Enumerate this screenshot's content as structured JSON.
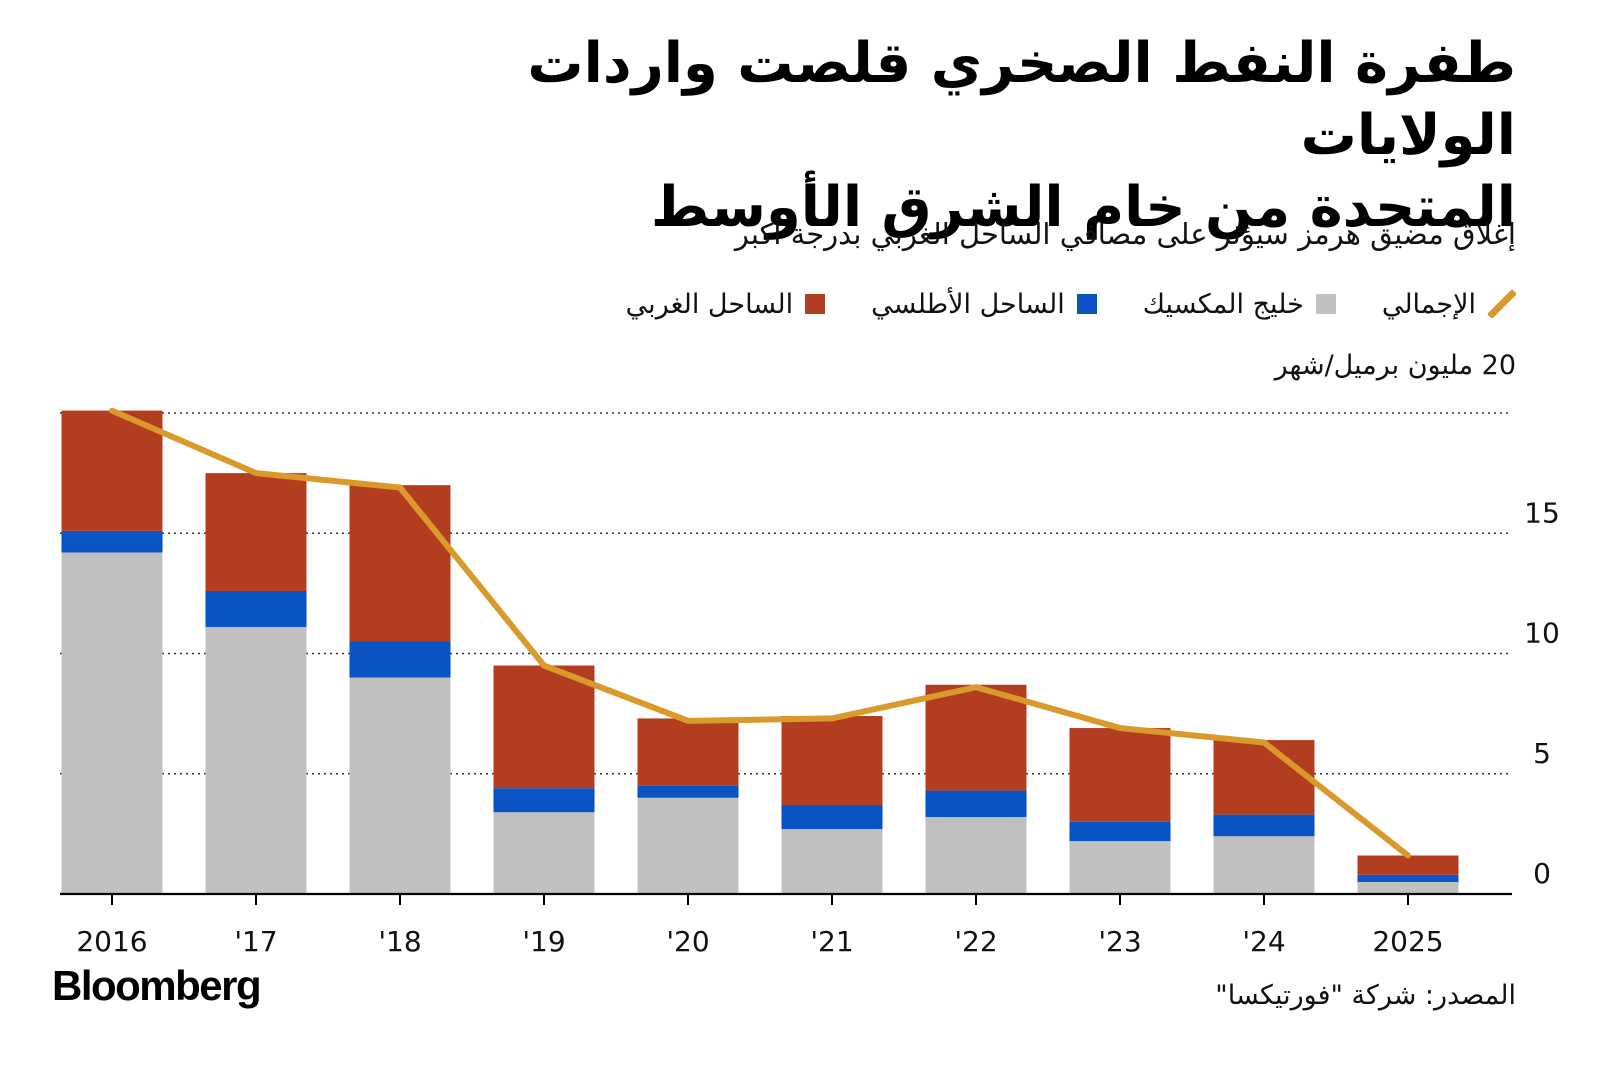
{
  "header": {
    "title_line1": "طفرة النفط الصخري قلصت واردات الولايات",
    "title_line2": "المتحدة من خام الشرق الأوسط",
    "subtitle": "إغلاق مضيق هرمز سيؤثر على مصافي الساحل الغربي بدرجة أكبر"
  },
  "legend": {
    "total": "الإجمالي",
    "gulf": "خليج المكسيك",
    "atlantic": "الساحل الأطلسي",
    "west": "الساحل الغربي"
  },
  "colors": {
    "gulf": "#c0c0c0",
    "atlantic": "#0a53c4",
    "west": "#b33d1f",
    "total": "#d99a2b",
    "grid": "#333333",
    "axis": "#000000"
  },
  "axis": {
    "unit_label": "20 مليون برميل/شهر"
  },
  "chart_data": {
    "type": "bar",
    "stacked": true,
    "title": "طفرة النفط الصخري قلصت واردات الولايات المتحدة من خام الشرق الأوسط",
    "subtitle": "إغلاق مضيق هرمز سيؤثر على مصافي الساحل الغربي بدرجة أكبر",
    "ylabel": "مليون برميل/شهر",
    "ylim": [
      0,
      20
    ],
    "yticks": [
      0,
      5,
      10,
      15,
      20
    ],
    "ytick_labels": [
      "0",
      "5",
      "10",
      "15",
      "20"
    ],
    "grid": true,
    "categories": [
      "2016",
      "'17",
      "'18",
      "'19",
      "'20",
      "'21",
      "'22",
      "'23",
      "'24",
      "2025"
    ],
    "series": [
      {
        "name": "خليج المكسيك",
        "key": "gulf",
        "values": [
          14.2,
          11.1,
          9.0,
          3.4,
          4.0,
          2.7,
          3.2,
          2.2,
          2.4,
          0.5
        ]
      },
      {
        "name": "الساحل الأطلسي",
        "key": "atlantic",
        "values": [
          0.9,
          1.5,
          1.5,
          1.0,
          0.5,
          1.0,
          1.1,
          0.8,
          0.9,
          0.3
        ]
      },
      {
        "name": "الساحل الغربي",
        "key": "west",
        "values": [
          5.0,
          4.9,
          6.5,
          5.1,
          2.8,
          3.7,
          4.4,
          3.9,
          3.1,
          0.8
        ]
      }
    ],
    "line": {
      "name": "الإجمالي",
      "key": "total",
      "values": [
        20.1,
        17.5,
        16.9,
        9.5,
        7.2,
        7.3,
        8.6,
        6.9,
        6.3,
        1.6
      ]
    },
    "legend_position": "top-right"
  },
  "footer": {
    "logo": "Bloomberg",
    "source": "المصدر: شركة \"فورتيكسا\""
  }
}
